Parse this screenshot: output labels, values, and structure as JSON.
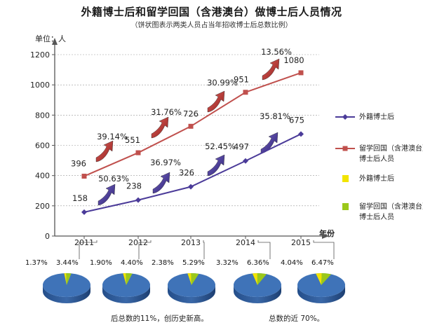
{
  "title": "外籍博士后和留学回国（含港澳台）做博士后人员情况",
  "subtitle": "（饼状图表示两类人员占当年招收博士后总数比例）",
  "ylabel": "单位：人",
  "xunit": "年份",
  "colors": {
    "foreign": "#4b3b99",
    "returned": "#c0504d",
    "foreign_pie": "#f2e400",
    "returned_pie": "#9bc81a",
    "pie_base": "#3f73b8",
    "axis": "#555555",
    "grid": "#999999"
  },
  "legend": [
    {
      "label": "外籍博士后",
      "kind": "line",
      "color": "#4b3b99"
    },
    {
      "label": "留学回国（含港澳台）做博士后人员",
      "kind": "line",
      "color": "#c0504d"
    },
    {
      "label": "外籍博士后",
      "kind": "box",
      "color": "#f2e400"
    },
    {
      "label": "留学回国（含港澳台）做博士后人员",
      "kind": "box",
      "color": "#9bc81a"
    }
  ],
  "footer": {
    "left": "后总数的11%，创历史新高。",
    "right": "总数的近 70%。"
  },
  "chart_data": {
    "type": "line",
    "x": [
      "2011",
      "2012",
      "2013",
      "2014",
      "2015"
    ],
    "yticks": [
      "0",
      "200",
      "400",
      "600",
      "800",
      "1000",
      "1200"
    ],
    "ylim": [
      0,
      1200
    ],
    "series": [
      {
        "name": "外籍博士后",
        "values": [
          158,
          238,
          326,
          497,
          675
        ],
        "labels": [
          "158",
          "238",
          "326",
          "497",
          "675"
        ],
        "growth": [
          "50.63%",
          "36.97%",
          "52.45%",
          "35.81%"
        ],
        "color": "#4b3b99"
      },
      {
        "name": "留学回国（含港澳台）做博士后人员",
        "values": [
          396,
          551,
          726,
          951,
          1080
        ],
        "labels": [
          "396",
          "551",
          "726",
          "951",
          "1080"
        ],
        "growth": [
          "39.14%",
          "31.76%",
          "30.99%",
          "13.56%"
        ],
        "color": "#c0504d"
      }
    ],
    "pies": [
      {
        "year": "2011",
        "foreign": 1.37,
        "returned": 3.44,
        "foreign_label": "1.37%",
        "returned_label": "3.44%"
      },
      {
        "year": "2012",
        "foreign": 1.9,
        "returned": 4.4,
        "foreign_label": "1.90%",
        "returned_label": "4.40%"
      },
      {
        "year": "2013",
        "foreign": 2.38,
        "returned": 5.29,
        "foreign_label": "2.38%",
        "returned_label": "5.29%"
      },
      {
        "year": "2014",
        "foreign": 3.32,
        "returned": 6.36,
        "foreign_label": "3.32%",
        "returned_label": "6.36%"
      },
      {
        "year": "2015",
        "foreign": 4.04,
        "returned": 6.47,
        "foreign_label": "4.04%",
        "returned_label": "6.47%"
      }
    ]
  }
}
